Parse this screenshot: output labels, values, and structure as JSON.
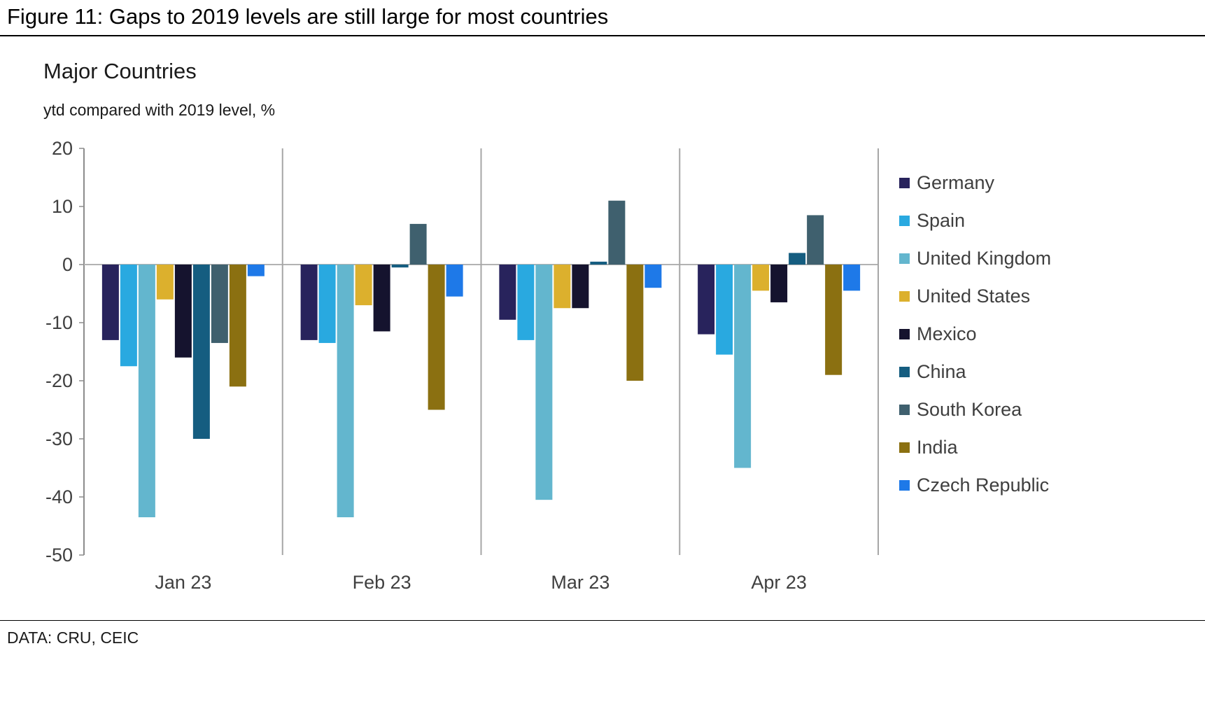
{
  "figure": {
    "title": "Figure 11: Gaps to 2019 levels are still large for most countries",
    "source": "DATA: CRU, CEIC"
  },
  "chart_data": {
    "type": "bar",
    "title": "Major Countries",
    "subtitle": "ytd compared with 2019 level, %",
    "ylim": [
      -50,
      20
    ],
    "yticks": [
      20,
      10,
      0,
      -10,
      -20,
      -30,
      -40,
      -50
    ],
    "grid": false,
    "legend_position": "right",
    "categories": [
      "Jan 23",
      "Feb 23",
      "Mar 23",
      "Apr 23"
    ],
    "series": [
      {
        "name": "Germany",
        "color": "#28235c",
        "values": [
          -13,
          -13,
          -9.5,
          -12
        ]
      },
      {
        "name": "Spain",
        "color": "#29a9e0",
        "values": [
          -17.5,
          -13.5,
          -13,
          -15.5
        ]
      },
      {
        "name": "United Kingdom",
        "color": "#63b6ce",
        "values": [
          -43.5,
          -43.5,
          -40.5,
          -35
        ]
      },
      {
        "name": "United States",
        "color": "#dcb02d",
        "values": [
          -6,
          -7,
          -7.5,
          -4.5
        ]
      },
      {
        "name": "Mexico",
        "color": "#15132e",
        "values": [
          -16,
          -11.5,
          -7.5,
          -6.5
        ]
      },
      {
        "name": "China",
        "color": "#155d80",
        "values": [
          -30,
          -0.5,
          0.5,
          2
        ]
      },
      {
        "name": "South Korea",
        "color": "#3f606e",
        "values": [
          -13.5,
          7,
          11,
          8.5
        ]
      },
      {
        "name": "India",
        "color": "#8b7011",
        "values": [
          -21,
          -25,
          -20,
          -19
        ]
      },
      {
        "name": "Czech Republic",
        "color": "#1e79e8",
        "values": [
          -2,
          -5.5,
          -4,
          -4.5
        ]
      }
    ]
  }
}
